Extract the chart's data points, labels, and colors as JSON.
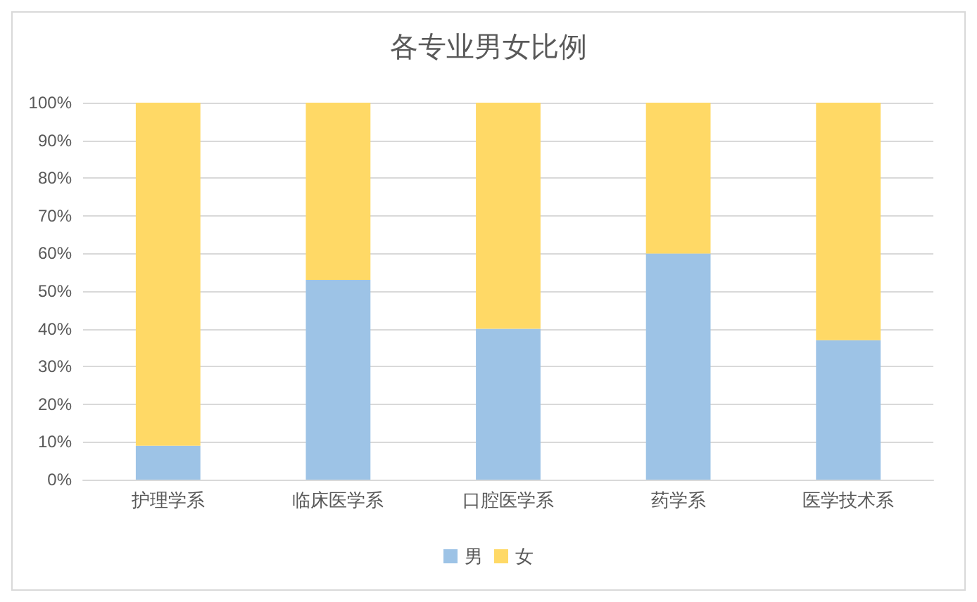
{
  "chart_data": {
    "type": "bar",
    "title": "各专业男女比例",
    "categories": [
      "护理学系",
      "临床医学系",
      "口腔医学系",
      "药学系",
      "医学技术系"
    ],
    "stacked": true,
    "series": [
      {
        "name": "男",
        "color": "#9dc3e6",
        "values": [
          9,
          53,
          40,
          60,
          37
        ]
      },
      {
        "name": "女",
        "color": "#ffd966",
        "values": [
          91,
          47,
          60,
          40,
          63
        ]
      }
    ],
    "ylim": [
      0,
      100
    ],
    "yticks": [
      {
        "value": 0,
        "label": "0%"
      },
      {
        "value": 10,
        "label": "10%"
      },
      {
        "value": 20,
        "label": "20%"
      },
      {
        "value": 30,
        "label": "30%"
      },
      {
        "value": 40,
        "label": "40%"
      },
      {
        "value": 50,
        "label": "50%"
      },
      {
        "value": 60,
        "label": "60%"
      },
      {
        "value": 70,
        "label": "70%"
      },
      {
        "value": 80,
        "label": "80%"
      },
      {
        "value": 90,
        "label": "90%"
      },
      {
        "value": 100,
        "label": "100%"
      }
    ],
    "grid": "y",
    "legend": "bottom"
  }
}
